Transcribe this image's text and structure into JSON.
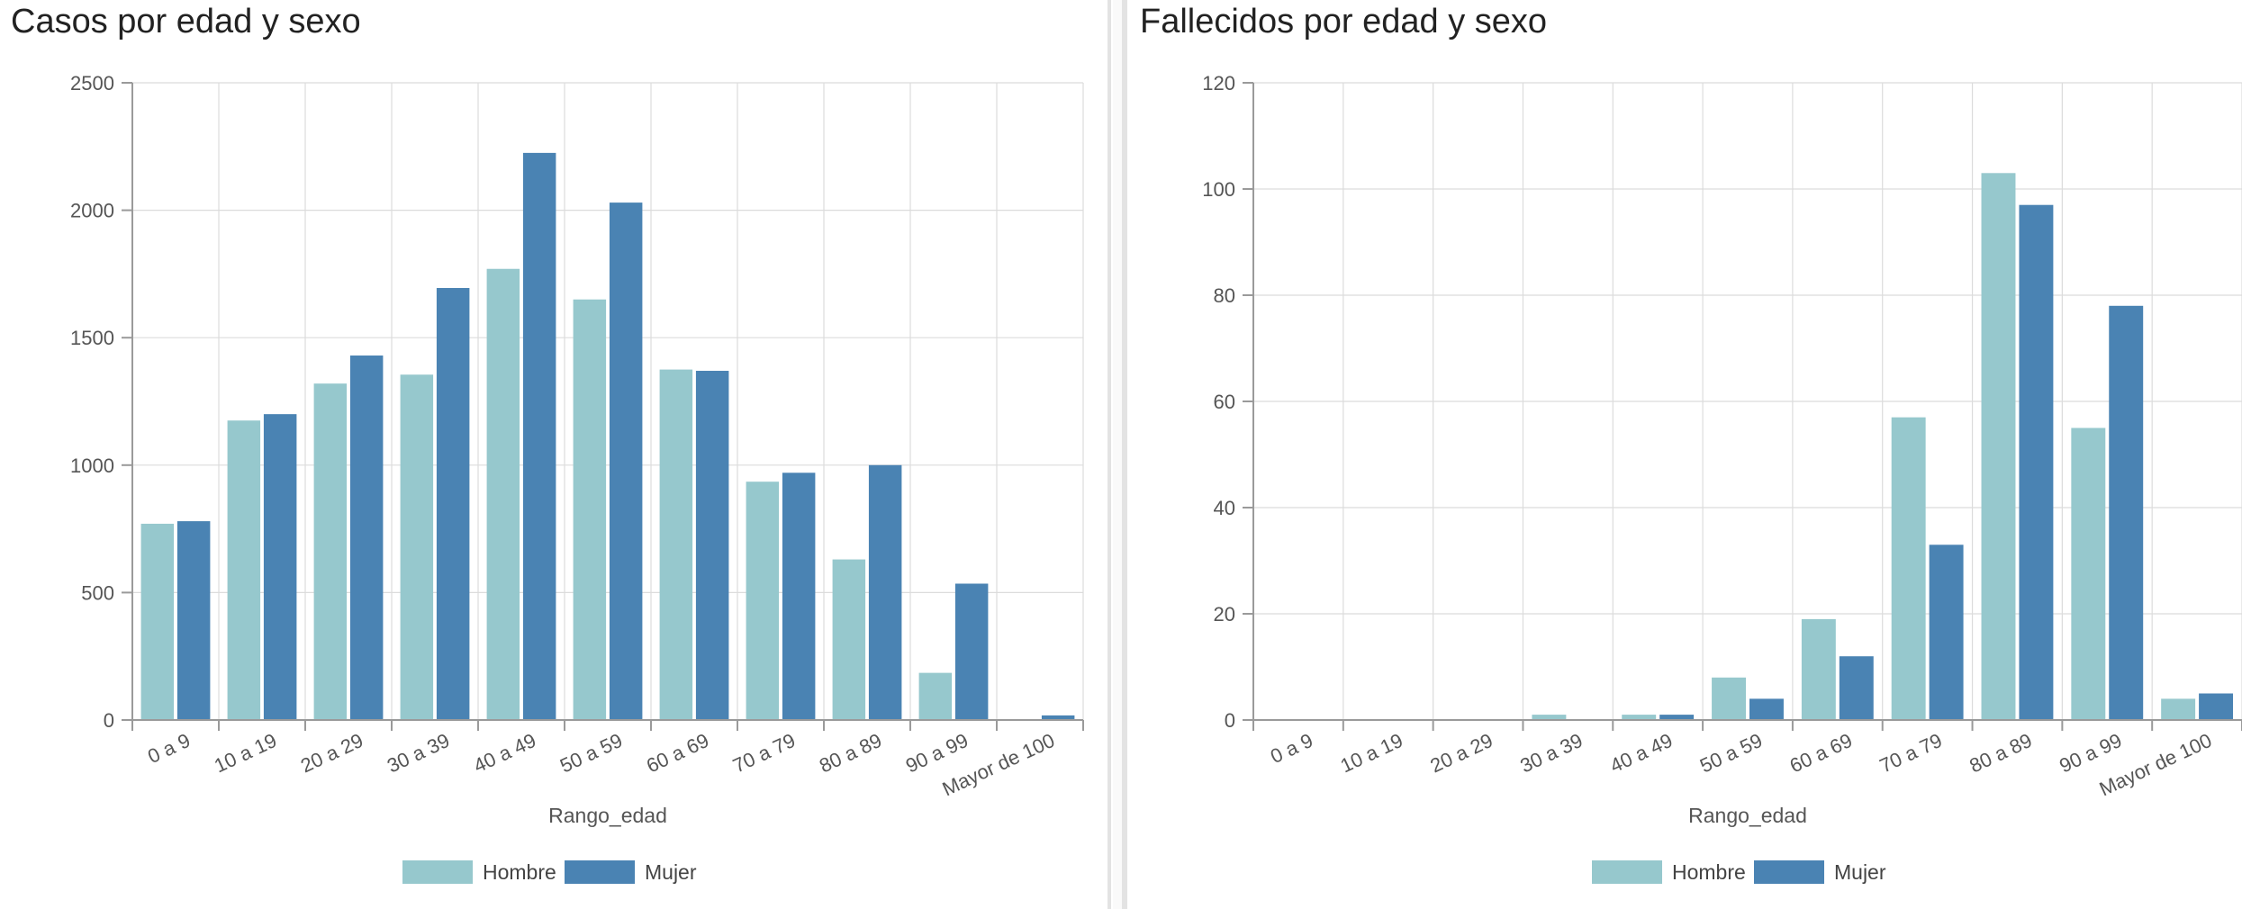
{
  "colors": {
    "hombre": "#96c8cd",
    "mujer": "#4a83b3",
    "grid": "#dcdcdc",
    "axis": "#9a9a9a"
  },
  "chart_data": [
    {
      "type": "bar",
      "title": "Casos por edad y sexo",
      "xlabel": "Rango_edad",
      "ylabel": "",
      "ylim": [
        0,
        2500
      ],
      "yticks": [
        0,
        500,
        1000,
        1500,
        2000,
        2500
      ],
      "categories": [
        "0 a 9",
        "10 a 19",
        "20 a 29",
        "30 a 39",
        "40 a 49",
        "50 a 59",
        "60 a 69",
        "70 a 79",
        "80 a 89",
        "90 a 99",
        "Mayor de 100"
      ],
      "series": [
        {
          "name": "Hombre",
          "color": "#96c8cd",
          "values": [
            770,
            1175,
            1320,
            1355,
            1770,
            1650,
            1375,
            935,
            630,
            185,
            2
          ]
        },
        {
          "name": "Mujer",
          "color": "#4a83b3",
          "values": [
            780,
            1200,
            1430,
            1695,
            2225,
            2030,
            1370,
            970,
            1000,
            535,
            18
          ]
        }
      ],
      "legend_position": "bottom-center"
    },
    {
      "type": "bar",
      "title": "Fallecidos por edad y sexo",
      "xlabel": "Rango_edad",
      "ylabel": "",
      "ylim": [
        0,
        120
      ],
      "yticks": [
        0,
        20,
        40,
        60,
        80,
        100,
        120
      ],
      "categories": [
        "0 a 9",
        "10 a 19",
        "20 a 29",
        "30 a 39",
        "40 a 49",
        "50 a 59",
        "60 a 69",
        "70 a 79",
        "80 a 89",
        "90 a 99",
        "Mayor de 100"
      ],
      "series": [
        {
          "name": "Hombre",
          "color": "#96c8cd",
          "values": [
            0,
            0,
            0,
            1,
            1,
            8,
            19,
            57,
            103,
            55,
            4
          ]
        },
        {
          "name": "Mujer",
          "color": "#4a83b3",
          "values": [
            0,
            0,
            0,
            0,
            1,
            4,
            12,
            33,
            97,
            78,
            5
          ]
        }
      ],
      "legend_position": "bottom-center"
    }
  ]
}
